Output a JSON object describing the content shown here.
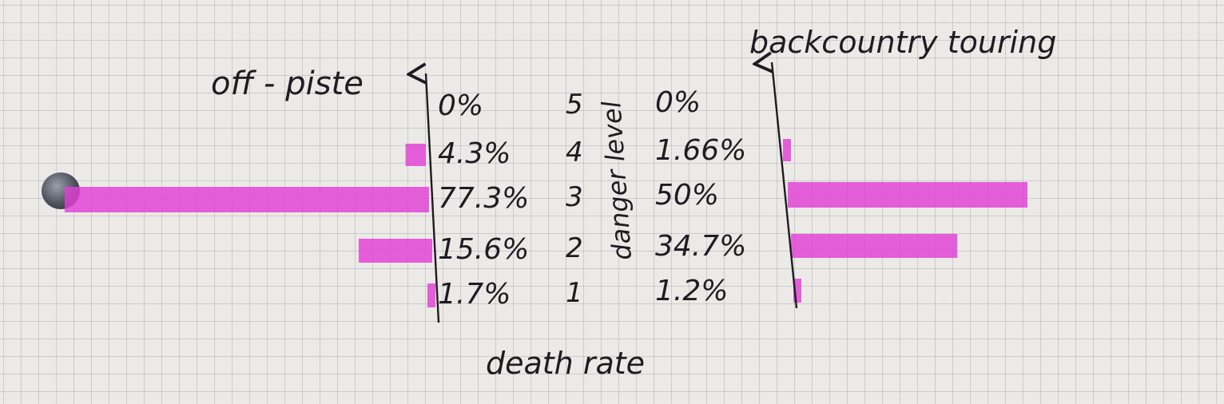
{
  "chart_data": {
    "type": "bar",
    "orientation": "horizontal",
    "layout": "back-to-back",
    "xlabel": "death rate",
    "center_axis_label": "danger level",
    "categories": [
      "5",
      "4",
      "3",
      "2",
      "1"
    ],
    "series": [
      {
        "name": "off - piste",
        "side": "left",
        "values": [
          0,
          4.3,
          77.3,
          15.6,
          1.7
        ],
        "labels": [
          "0%",
          "4.3%",
          "77.3%",
          "15.6%",
          "1.7%"
        ]
      },
      {
        "name": "backcountry touring",
        "side": "right",
        "values": [
          0,
          1.66,
          50,
          34.7,
          1.2
        ],
        "labels": [
          "0%",
          "1.66%",
          "50%",
          "34.7%",
          "1.2%"
        ]
      }
    ],
    "bar_color": "#e23fd6",
    "ink_color": "#1d1c22"
  }
}
